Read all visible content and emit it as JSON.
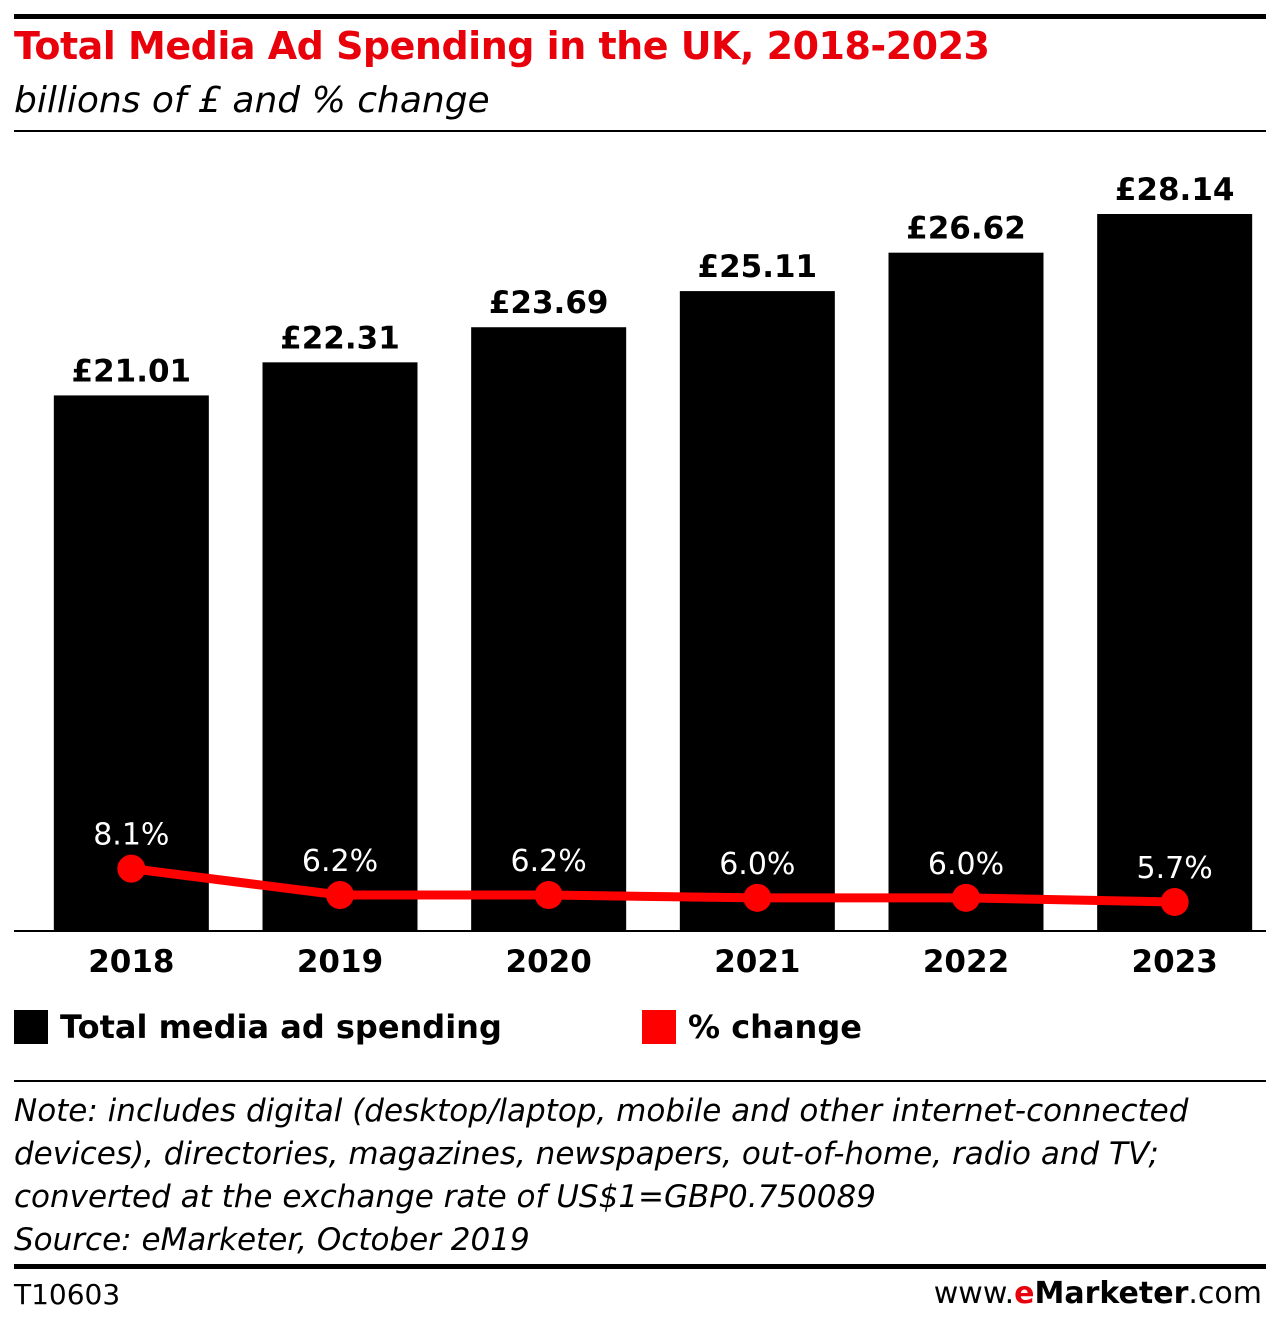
{
  "title": "Total Media Ad Spending in the UK, 2018-2023",
  "subtitle": "billions of £ and % change",
  "colors": {
    "bar": "#000000",
    "line": "#ff0000",
    "title": "#e8000b"
  },
  "chart_data": {
    "type": "bar",
    "categories": [
      "2018",
      "2019",
      "2020",
      "2021",
      "2022",
      "2023"
    ],
    "series": [
      {
        "name": "Total media ad spending",
        "type": "bar",
        "values": [
          21.01,
          22.31,
          23.69,
          25.11,
          26.62,
          28.14
        ],
        "labels": [
          "£21.01",
          "£22.31",
          "£23.69",
          "£25.11",
          "£26.62",
          "£28.14"
        ]
      },
      {
        "name": "% change",
        "type": "line",
        "values": [
          8.1,
          6.2,
          6.2,
          6.0,
          6.0,
          5.7
        ],
        "labels": [
          "8.1%",
          "6.2%",
          "6.2%",
          "6.0%",
          "6.0%",
          "5.7%"
        ]
      }
    ],
    "ylim": [
      0,
      30
    ],
    "legend_position": "bottom"
  },
  "legend": {
    "spending": "Total media ad spending",
    "change": "% change"
  },
  "note": {
    "lines": [
      "Note: includes digital (desktop/laptop, mobile and other internet-connected",
      "devices), directories, magazines, newspapers, out-of-home, radio and TV;",
      "converted at the exchange rate of US$1=GBP0.750089",
      "Source: eMarketer, October 2019"
    ]
  },
  "footer": {
    "chart_id": "T10603",
    "brand_prefix": "www.",
    "brand_e": "e",
    "brand_name": "Marketer",
    "brand_suffix": ".com"
  }
}
